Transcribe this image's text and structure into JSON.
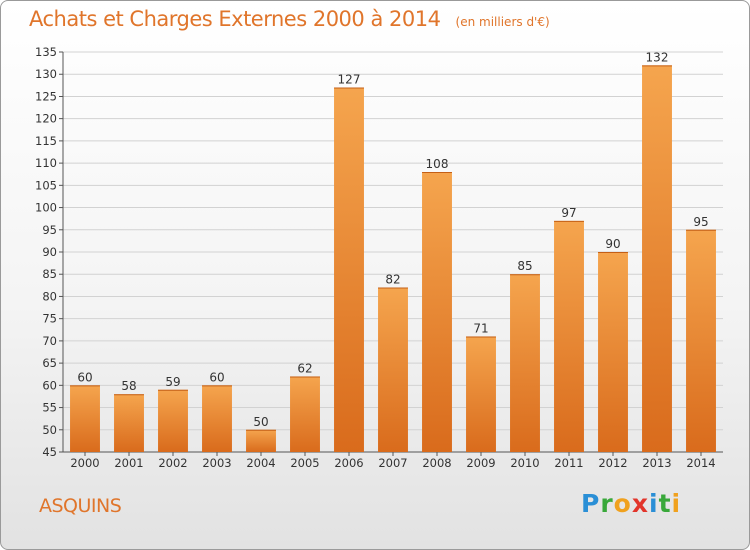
{
  "header": {
    "title": "Achats et Charges Externes 2000 à 2014",
    "subtitle": "(en milliers d'€)"
  },
  "footer": {
    "town": "ASQUINS",
    "logo_letters": [
      {
        "ch": "P",
        "color": "#2a8fd6"
      },
      {
        "ch": "r",
        "color": "#39a83a"
      },
      {
        "ch": "o",
        "color": "#f0a11e"
      },
      {
        "ch": "x",
        "color": "#e2352b"
      },
      {
        "ch": "i",
        "color": "#2a8fd6"
      },
      {
        "ch": "t",
        "color": "#39a83a"
      },
      {
        "ch": "i",
        "color": "#f0a11e"
      }
    ]
  },
  "chart_data": {
    "type": "bar",
    "title": "Achats et Charges Externes 2000 à 2014",
    "subtitle": "(en milliers d'€)",
    "categories": [
      "2000",
      "2001",
      "2002",
      "2003",
      "2004",
      "2005",
      "2006",
      "2007",
      "2008",
      "2009",
      "2010",
      "2011",
      "2012",
      "2013",
      "2014"
    ],
    "values": [
      60,
      58,
      59,
      60,
      50,
      62,
      127,
      82,
      108,
      71,
      85,
      97,
      90,
      132,
      95
    ],
    "ylim": [
      45,
      135
    ],
    "yticks": [
      45,
      50,
      55,
      60,
      65,
      70,
      75,
      80,
      85,
      90,
      95,
      100,
      105,
      110,
      115,
      120,
      125,
      130,
      135
    ],
    "grid": true,
    "legend": "none",
    "colors": {
      "bar_light": "#f5a54e",
      "bar_dark": "#d96b1c",
      "accent": "#e0752b"
    }
  }
}
